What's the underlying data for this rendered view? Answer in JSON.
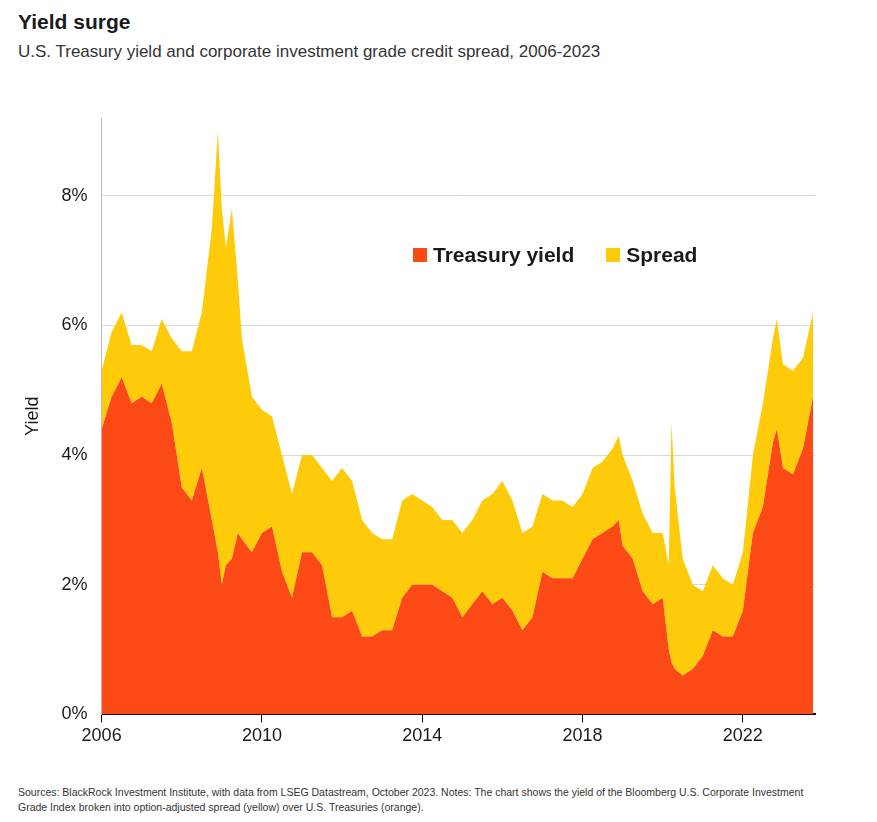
{
  "chart_data": {
    "type": "stacked_area",
    "title": "Yield surge",
    "subtitle": "U.S. Treasury yield and corporate investment grade credit spread, 2006-2023",
    "y_label": "Yield",
    "note": "Sources: BlackRock Investment Institute, with data from LSEG Datastream, October 2023. Notes: The chart shows the yield of the Bloomberg U.S. Corporate Investment Grade Index broken into option-adjusted spread (yellow) over U.S. Treasuries (orange).",
    "stacked": true,
    "grid": true,
    "legend": "top",
    "x": [
      2006,
      2006.25,
      2006.5,
      2006.75,
      2007,
      2007.25,
      2007.5,
      2007.75,
      2008,
      2008.25,
      2008.5,
      2008.75,
      2008.9,
      2009,
      2009.1,
      2009.25,
      2009.4,
      2009.5,
      2009.75,
      2010,
      2010.25,
      2010.5,
      2010.75,
      2011,
      2011.25,
      2011.5,
      2011.75,
      2012,
      2012.25,
      2012.5,
      2012.75,
      2013,
      2013.25,
      2013.5,
      2013.75,
      2014,
      2014.25,
      2014.5,
      2014.75,
      2015,
      2015.25,
      2015.5,
      2015.75,
      2016,
      2016.25,
      2016.5,
      2016.75,
      2017,
      2017.25,
      2017.5,
      2017.75,
      2018,
      2018.25,
      2018.5,
      2018.75,
      2018.9,
      2019,
      2019.25,
      2019.5,
      2019.75,
      2020,
      2020.15,
      2020.22,
      2020.3,
      2020.5,
      2020.75,
      2021,
      2021.25,
      2021.5,
      2021.75,
      2022,
      2022.25,
      2022.5,
      2022.75,
      2022.85,
      2023,
      2023.25,
      2023.5,
      2023.75
    ],
    "series": [
      {
        "name": "Treasury yield",
        "color": "#fb4a15",
        "values": [
          4.4,
          4.9,
          5.2,
          4.8,
          4.9,
          4.8,
          5.1,
          4.5,
          3.5,
          3.3,
          3.8,
          3.0,
          2.5,
          2.0,
          2.3,
          2.4,
          2.8,
          2.7,
          2.5,
          2.8,
          2.9,
          2.2,
          1.8,
          2.5,
          2.5,
          2.3,
          1.5,
          1.5,
          1.6,
          1.2,
          1.2,
          1.3,
          1.3,
          1.8,
          2.0,
          2.0,
          2.0,
          1.9,
          1.8,
          1.5,
          1.7,
          1.9,
          1.7,
          1.8,
          1.6,
          1.3,
          1.5,
          2.2,
          2.1,
          2.1,
          2.1,
          2.4,
          2.7,
          2.8,
          2.9,
          3.0,
          2.6,
          2.4,
          1.9,
          1.7,
          1.8,
          1.0,
          0.8,
          0.7,
          0.6,
          0.7,
          0.9,
          1.3,
          1.2,
          1.2,
          1.6,
          2.8,
          3.2,
          4.2,
          4.4,
          3.8,
          3.7,
          4.1,
          4.9
        ]
      },
      {
        "name": "Spread",
        "color": "#fdcb0a",
        "values": [
          0.9,
          1.0,
          1.0,
          0.9,
          0.8,
          0.8,
          1.0,
          1.3,
          2.1,
          2.3,
          2.4,
          4.5,
          6.5,
          5.8,
          4.9,
          5.4,
          3.9,
          3.1,
          2.4,
          1.9,
          1.7,
          1.8,
          1.6,
          1.5,
          1.5,
          1.5,
          2.1,
          2.3,
          2.0,
          1.8,
          1.6,
          1.4,
          1.4,
          1.5,
          1.4,
          1.3,
          1.2,
          1.1,
          1.2,
          1.3,
          1.3,
          1.4,
          1.7,
          1.8,
          1.7,
          1.5,
          1.4,
          1.2,
          1.2,
          1.2,
          1.1,
          1.0,
          1.1,
          1.1,
          1.2,
          1.3,
          1.4,
          1.2,
          1.2,
          1.1,
          1.0,
          1.3,
          3.7,
          2.8,
          1.8,
          1.3,
          1.0,
          1.0,
          0.9,
          0.8,
          0.9,
          1.2,
          1.6,
          1.6,
          1.7,
          1.6,
          1.6,
          1.4,
          1.3
        ]
      }
    ],
    "xlim": [
      2006,
      2023.8
    ],
    "xticks": [
      2006,
      2010,
      2014,
      2018,
      2022
    ],
    "ylim": [
      0,
      9.2
    ],
    "yticks": [
      {
        "value": 0,
        "label": "0%"
      },
      {
        "value": 2,
        "label": "2%"
      },
      {
        "value": 4,
        "label": "4%"
      },
      {
        "value": 6,
        "label": "6%"
      },
      {
        "value": 8,
        "label": "8%"
      }
    ]
  }
}
